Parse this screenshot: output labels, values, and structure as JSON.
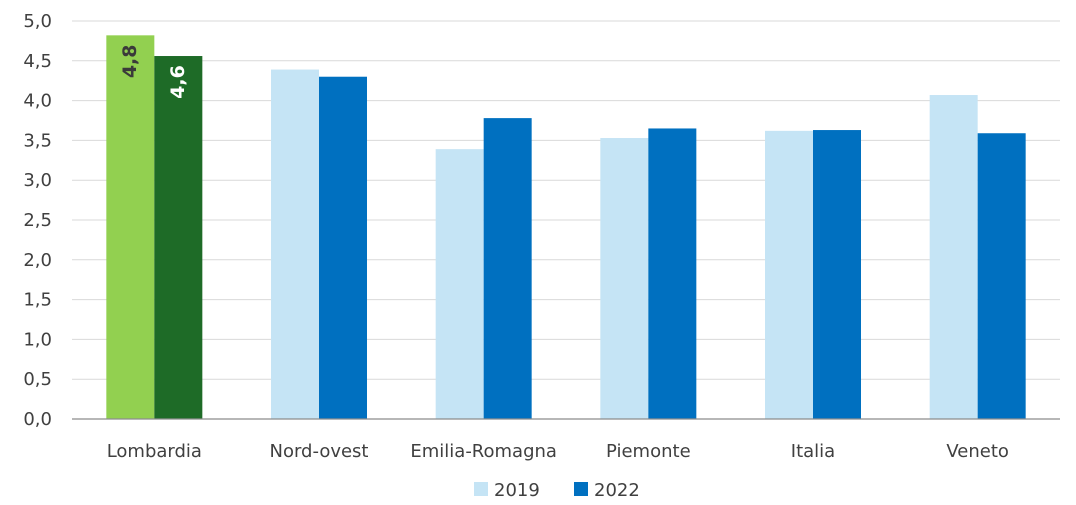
{
  "chart_data": {
    "type": "bar",
    "title": "",
    "xlabel": "",
    "ylabel": "",
    "ylim": [
      0,
      5
    ],
    "ytick_step": 0.5,
    "ytick_labels": [
      "0,0",
      "0,5",
      "1,0",
      "1,5",
      "2,0",
      "2,5",
      "3,0",
      "3,5",
      "4,0",
      "4,5",
      "5,0"
    ],
    "grid": true,
    "legend_position": "bottom",
    "categories": [
      "Lombardia",
      "Nord-ovest",
      "Emilia-Romagna",
      "Piemonte",
      "Italia",
      "Veneto"
    ],
    "series": [
      {
        "name": "2019",
        "values": [
          4.82,
          4.39,
          3.39,
          3.53,
          3.62,
          4.07
        ],
        "color": "#c5e4f5",
        "highlight_color": "#92d050",
        "data_labels": [
          "4,8",
          "",
          "",
          "",
          "",
          ""
        ],
        "data_label_color": "#3a3a3a"
      },
      {
        "name": "2022",
        "values": [
          4.56,
          4.3,
          3.78,
          3.65,
          3.63,
          3.59
        ],
        "color": "#0070c0",
        "highlight_color": "#1e6b27",
        "data_labels": [
          "4,6",
          "",
          "",
          "",
          "",
          ""
        ],
        "data_label_color": "#ffffff"
      }
    ],
    "highlight_category_index": 0,
    "colors": {
      "grid": "#d9d9d9",
      "axis": "#8c8c8c",
      "text": "#404040"
    }
  }
}
